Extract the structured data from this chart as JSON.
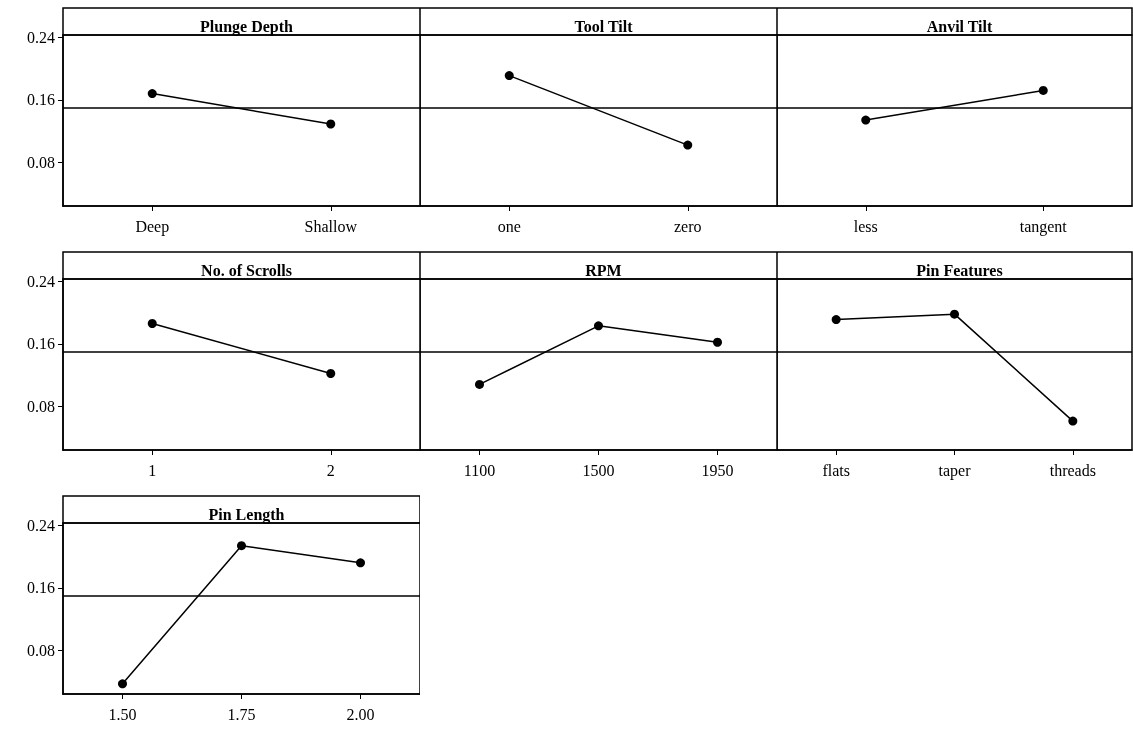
{
  "chart_data": [
    {
      "type": "line",
      "title": "Plunge Depth",
      "categories": [
        "Deep",
        "Shallow"
      ],
      "values": [
        0.168,
        0.129
      ],
      "color": "#000000",
      "ylim": [
        0.024,
        0.243
      ],
      "yticks": [
        0.08,
        0.16,
        0.24
      ],
      "ref_lines": [
        {
          "axis": "y",
          "value": 0.149,
          "color": "#000000"
        }
      ],
      "marker": "circle",
      "grid": false
    },
    {
      "type": "line",
      "title": "Tool Tilt",
      "categories": [
        "one",
        "zero"
      ],
      "values": [
        0.191,
        0.102
      ],
      "color": "#000000",
      "ylim": [
        0.024,
        0.243
      ],
      "yticks": [
        0.08,
        0.16,
        0.24
      ],
      "ref_lines": [
        {
          "axis": "y",
          "value": 0.149,
          "color": "#000000"
        }
      ],
      "marker": "circle",
      "grid": false,
      "tick_labels": "x"
    },
    {
      "type": "line",
      "title": "Anvil Tilt",
      "categories": [
        "less",
        "tangent"
      ],
      "values": [
        0.134,
        0.172
      ],
      "color": "#000000",
      "ylim": [
        0.024,
        0.243
      ],
      "yticks": [
        0.08,
        0.16,
        0.24
      ],
      "ref_lines": [
        {
          "axis": "y",
          "value": 0.149,
          "color": "#000000"
        }
      ],
      "marker": "circle",
      "grid": false,
      "tick_labels": "x"
    },
    {
      "type": "line",
      "title": "No. of Scrolls",
      "categories": [
        "1",
        "2"
      ],
      "values": [
        0.186,
        0.122
      ],
      "color": "#000000",
      "ylim": [
        0.024,
        0.243
      ],
      "yticks": [
        0.08,
        0.16,
        0.24
      ],
      "ref_lines": [
        {
          "axis": "y",
          "value": 0.149,
          "color": "#000000"
        }
      ],
      "marker": "circle",
      "grid": false
    },
    {
      "type": "line",
      "title": "RPM",
      "categories": [
        "1100",
        "1500",
        "1950"
      ],
      "values": [
        0.108,
        0.183,
        0.162
      ],
      "color": "#000000",
      "ylim": [
        0.024,
        0.243
      ],
      "yticks": [
        0.08,
        0.16,
        0.24
      ],
      "ref_lines": [
        {
          "axis": "y",
          "value": 0.149,
          "color": "#000000"
        }
      ],
      "marker": "circle",
      "grid": false,
      "tick_labels": "x"
    },
    {
      "type": "line",
      "title": "Pin Features",
      "categories": [
        "flats",
        "taper",
        "threads"
      ],
      "values": [
        0.191,
        0.198,
        0.061
      ],
      "color": "#000000",
      "ylim": [
        0.024,
        0.243
      ],
      "yticks": [
        0.08,
        0.16,
        0.24
      ],
      "ref_lines": [
        {
          "axis": "y",
          "value": 0.149,
          "color": "#000000"
        }
      ],
      "marker": "circle",
      "grid": false,
      "tick_labels": "x"
    },
    {
      "type": "line",
      "title": "Pin Length",
      "categories": [
        "1.50",
        "1.75",
        "2.00"
      ],
      "values": [
        0.037,
        0.214,
        0.192
      ],
      "color": "#000000",
      "ylim": [
        0.024,
        0.243
      ],
      "yticks": [
        0.08,
        0.16,
        0.24
      ],
      "ref_lines": [
        {
          "axis": "y",
          "value": 0.149,
          "color": "#000000"
        }
      ],
      "marker": "circle",
      "grid": false
    }
  ]
}
